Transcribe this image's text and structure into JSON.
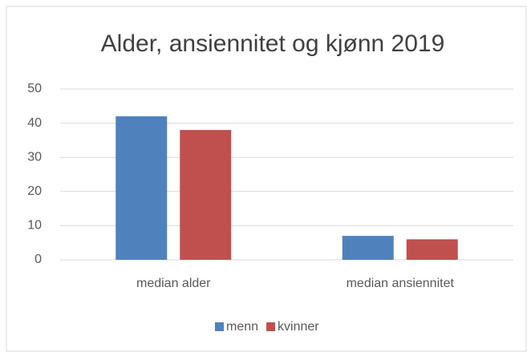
{
  "chart_data": {
    "type": "bar",
    "title": "Alder, ansiennitet og kjønn 2019",
    "categories": [
      "median alder",
      "median ansiennitet"
    ],
    "series": [
      {
        "name": "menn",
        "color": "#4f81bd",
        "values": [
          42,
          7
        ]
      },
      {
        "name": "kvinner",
        "color": "#c0504d",
        "values": [
          38,
          6
        ]
      }
    ],
    "ylim": [
      0,
      50
    ],
    "yticks": [
      0,
      10,
      20,
      30,
      40,
      50
    ],
    "grid": true,
    "legend": "bottom"
  }
}
